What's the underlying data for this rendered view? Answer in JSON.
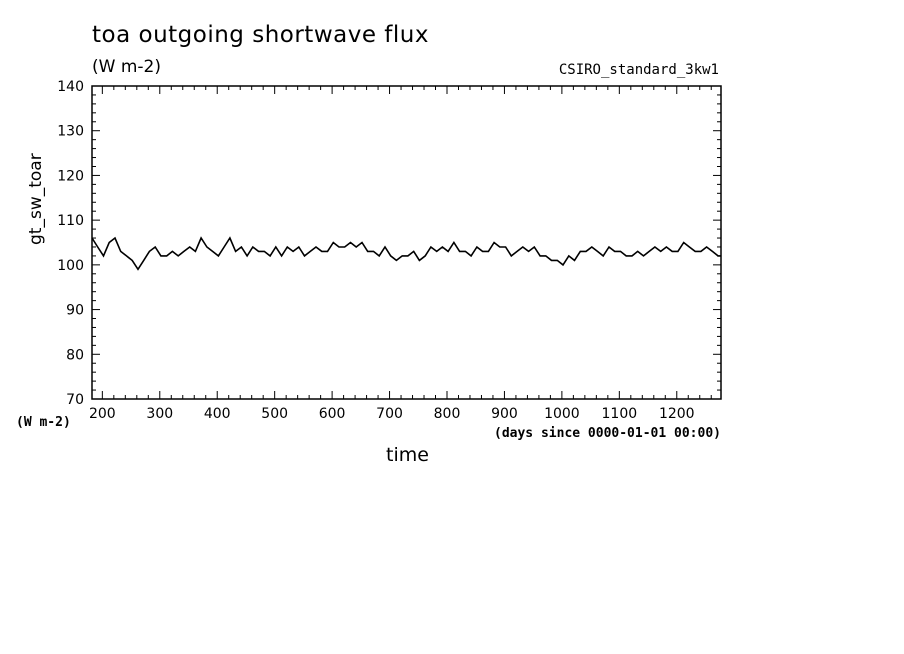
{
  "chart_data": {
    "type": "line",
    "title": "toa outgoing shortwave flux",
    "subtitle": "(W m-2)",
    "run_label": "CSIRO_standard_3kw1",
    "ylabel": "gt_sw_toar",
    "ylabel_units": "(W m-2)",
    "xlabel": "time",
    "xlabel_units": "(days since 0000-01-01 00:00)",
    "xlim": [
      182,
      1277
    ],
    "ylim": [
      70,
      140
    ],
    "xticks": [
      200,
      300,
      400,
      500,
      600,
      700,
      800,
      900,
      1000,
      1100,
      1200
    ],
    "yticks": [
      70,
      80,
      90,
      100,
      110,
      120,
      130,
      140
    ],
    "grid": false,
    "series": [
      {
        "color": "#000000",
        "x": [
          182,
          192,
          202,
          212,
          222,
          232,
          242,
          252,
          262,
          272,
          282,
          292,
          302,
          312,
          322,
          332,
          342,
          352,
          362,
          372,
          382,
          392,
          402,
          412,
          422,
          432,
          442,
          452,
          462,
          472,
          482,
          492,
          502,
          512,
          522,
          532,
          542,
          552,
          562,
          572,
          582,
          592,
          602,
          612,
          622,
          632,
          642,
          652,
          662,
          672,
          682,
          692,
          702,
          712,
          722,
          732,
          742,
          752,
          762,
          772,
          782,
          792,
          802,
          812,
          822,
          832,
          842,
          852,
          862,
          872,
          882,
          892,
          902,
          912,
          922,
          932,
          942,
          952,
          962,
          972,
          982,
          992,
          1002,
          1012,
          1022,
          1032,
          1042,
          1052,
          1062,
          1072,
          1082,
          1092,
          1102,
          1112,
          1122,
          1132,
          1142,
          1152,
          1162,
          1172,
          1182,
          1192,
          1202,
          1212,
          1222,
          1232,
          1242,
          1252,
          1262,
          1272,
          1277
        ],
        "y": [
          106,
          104,
          102,
          105,
          106,
          103,
          102,
          101,
          99,
          101,
          103,
          104,
          102,
          102,
          103,
          102,
          103,
          104,
          103,
          106,
          104,
          103,
          102,
          104,
          106,
          103,
          104,
          102,
          104,
          103,
          103,
          102,
          104,
          102,
          104,
          103,
          104,
          102,
          103,
          104,
          103,
          103,
          105,
          104,
          104,
          105,
          104,
          105,
          103,
          103,
          102,
          104,
          102,
          101,
          102,
          102,
          103,
          101,
          102,
          104,
          103,
          104,
          103,
          105,
          103,
          103,
          102,
          104,
          103,
          103,
          105,
          104,
          104,
          102,
          103,
          104,
          103,
          104,
          102,
          102,
          101,
          101,
          100,
          102,
          101,
          103,
          103,
          104,
          103,
          102,
          104,
          103,
          103,
          102,
          102,
          103,
          102,
          103,
          104,
          103,
          104,
          103,
          103,
          105,
          104,
          103,
          103,
          104,
          103,
          102,
          102
        ]
      }
    ]
  }
}
